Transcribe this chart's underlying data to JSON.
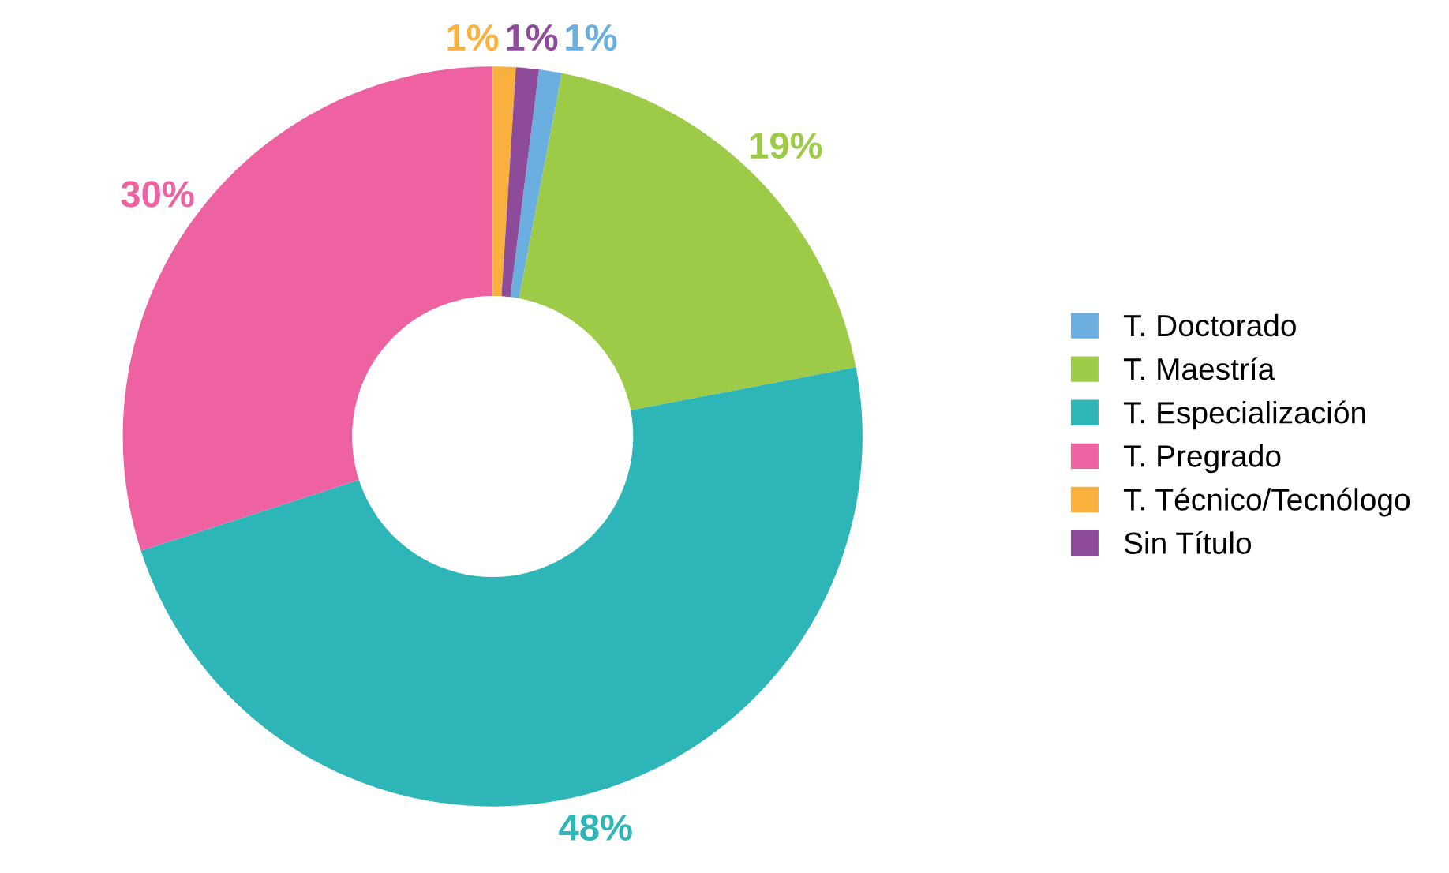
{
  "chart_data": {
    "type": "donut",
    "categories": [
      "T. Doctorado",
      "T. Maestría",
      "T. Especialización",
      "T. Pregrado",
      "T. Técnico/Tecnólogo",
      "Sin Título"
    ],
    "values": [
      1,
      19,
      48,
      30,
      1,
      1
    ],
    "value_labels": [
      "1%",
      "19%",
      "48%",
      "30%",
      "1%",
      "1%"
    ],
    "colors": [
      "#6aafe0",
      "#9dcb47",
      "#2eb5b7",
      "#ee62a2",
      "#f9b03d",
      "#8e4b9a"
    ],
    "legend": "right"
  }
}
